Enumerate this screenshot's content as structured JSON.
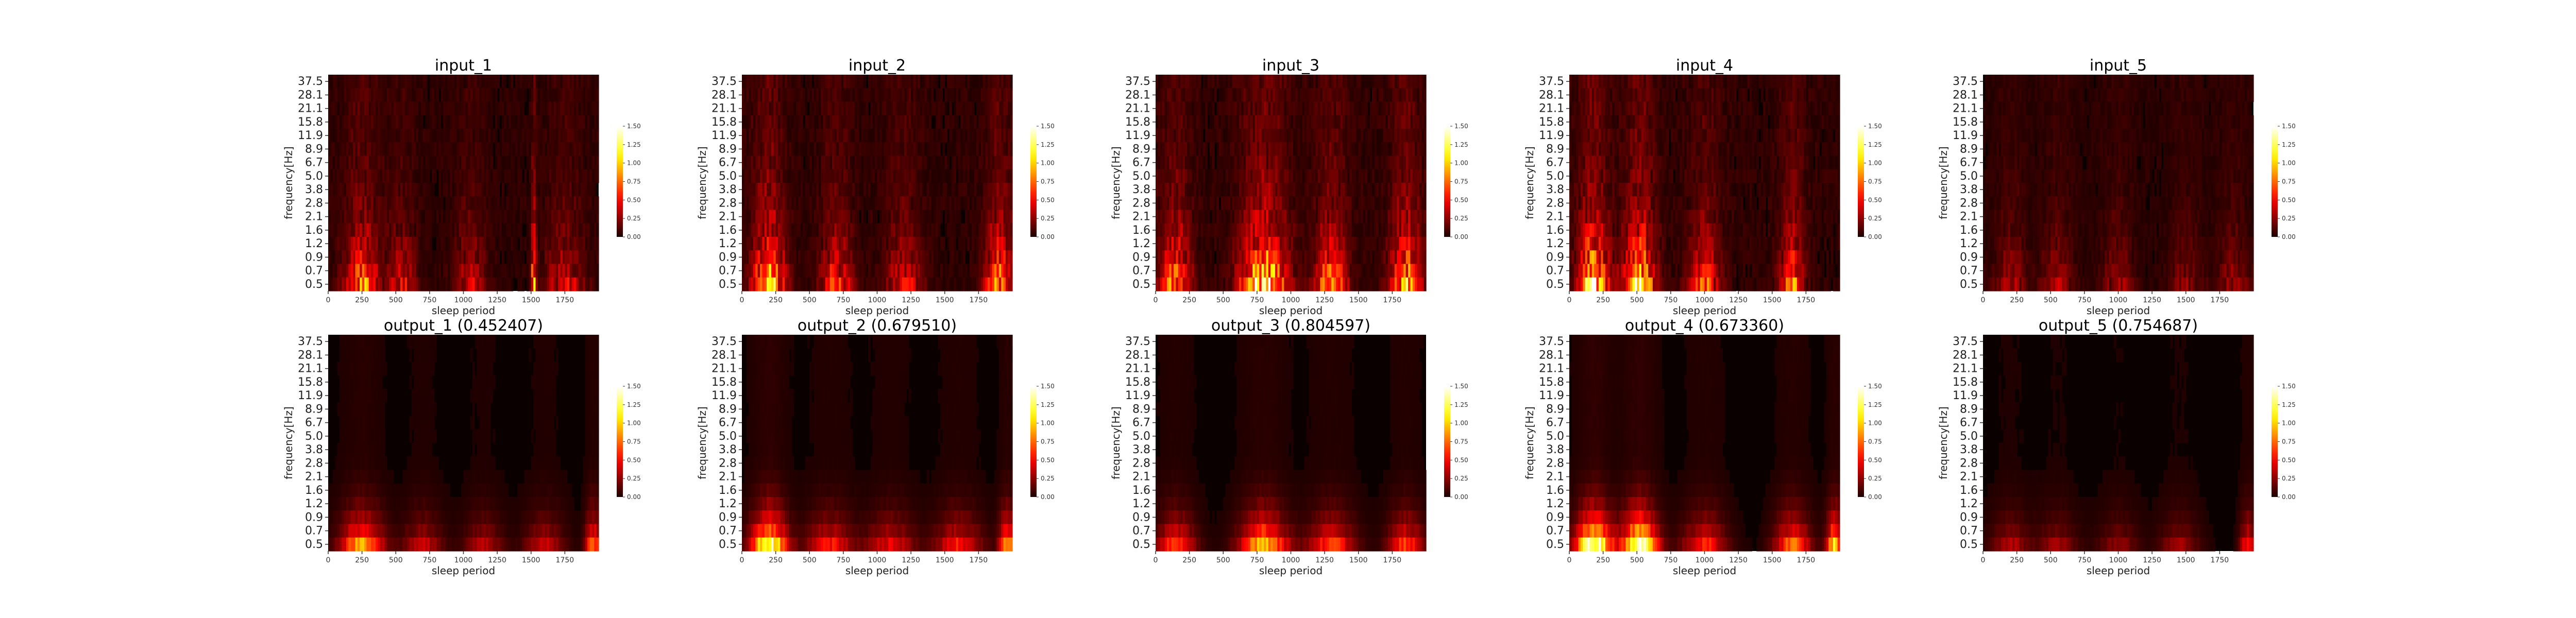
{
  "chart_data": {
    "type": "heatmap",
    "layout": {
      "rows": 2,
      "cols": 5
    },
    "colormap": "hot",
    "colors": {
      "low": "#000000",
      "mid1": "#8b0000",
      "mid2": "#ff2000",
      "mid3": "#ffa000",
      "high": "#ffffff"
    },
    "xlabel": "sleep period",
    "ylabel": "frequency[Hz]",
    "xlim": [
      0,
      2000
    ],
    "xticks": [
      0,
      250,
      500,
      750,
      1000,
      1250,
      1500,
      1750
    ],
    "xtick_labels": [
      "0",
      "250",
      "500",
      "750",
      "1000",
      "1250",
      "1500",
      "1750"
    ],
    "yticks": [
      "37.5",
      "28.1",
      "21.1",
      "15.8",
      "11.9",
      "8.9",
      "6.7",
      "5.0",
      "3.8",
      "2.8",
      "2.1",
      "1.6",
      "1.2",
      "0.9",
      "0.7",
      "0.5"
    ],
    "colorbar": {
      "range": [
        0,
        1.5
      ],
      "ticks": [
        0,
        0.25,
        0.5,
        0.75,
        1.0,
        1.25,
        1.5
      ],
      "tick_labels": [
        "0.00",
        "0.25",
        "0.50",
        "0.75",
        "1.00",
        "1.25",
        "1.50"
      ]
    },
    "panels": [
      {
        "title": "input_1",
        "row": 0,
        "col": 0,
        "kind": "input",
        "seed": 11,
        "intensity": 0.8,
        "hotspots": [
          {
            "x": 250,
            "sigma": 90,
            "amp": 0.7
          },
          {
            "x": 550,
            "sigma": 70,
            "amp": 0.4
          },
          {
            "x": 1050,
            "sigma": 80,
            "amp": 0.35
          },
          {
            "x": 1520,
            "sigma": 12,
            "amp": 1.0
          },
          {
            "x": 1750,
            "sigma": 100,
            "amp": 0.4
          }
        ]
      },
      {
        "title": "input_2",
        "row": 0,
        "col": 1,
        "kind": "input",
        "seed": 23,
        "intensity": 0.9,
        "hotspots": [
          {
            "x": 200,
            "sigma": 80,
            "amp": 0.9
          },
          {
            "x": 700,
            "sigma": 80,
            "amp": 0.5
          },
          {
            "x": 1200,
            "sigma": 90,
            "amp": 0.4
          },
          {
            "x": 1900,
            "sigma": 70,
            "amp": 0.7
          }
        ]
      },
      {
        "title": "input_3",
        "row": 0,
        "col": 2,
        "kind": "input",
        "seed": 37,
        "intensity": 1.0,
        "hotspots": [
          {
            "x": 150,
            "sigma": 80,
            "amp": 0.6
          },
          {
            "x": 800,
            "sigma": 120,
            "amp": 0.9
          },
          {
            "x": 1300,
            "sigma": 80,
            "amp": 0.6
          },
          {
            "x": 1850,
            "sigma": 80,
            "amp": 0.7
          }
        ]
      },
      {
        "title": "input_4",
        "row": 0,
        "col": 3,
        "kind": "input",
        "seed": 41,
        "intensity": 0.95,
        "hotspots": [
          {
            "x": 180,
            "sigma": 80,
            "amp": 0.9
          },
          {
            "x": 520,
            "sigma": 80,
            "amp": 0.9
          },
          {
            "x": 1000,
            "sigma": 80,
            "amp": 0.5
          },
          {
            "x": 1650,
            "sigma": 60,
            "amp": 0.6
          }
        ]
      },
      {
        "title": "input_5",
        "row": 0,
        "col": 4,
        "kind": "input",
        "seed": 53,
        "intensity": 0.6,
        "hotspots": [
          {
            "x": 200,
            "sigma": 80,
            "amp": 0.4
          },
          {
            "x": 550,
            "sigma": 80,
            "amp": 0.4
          },
          {
            "x": 1000,
            "sigma": 80,
            "amp": 0.35
          },
          {
            "x": 1500,
            "sigma": 80,
            "amp": 0.3
          },
          {
            "x": 1850,
            "sigma": 80,
            "amp": 0.35
          }
        ]
      },
      {
        "title": "output_1 (0.452407)",
        "row": 1,
        "col": 0,
        "kind": "output",
        "seed": 61,
        "intensity": 0.75,
        "hotspots": [
          {
            "x": 250,
            "sigma": 110,
            "amp": 0.8
          },
          {
            "x": 700,
            "sigma": 100,
            "amp": 0.35
          },
          {
            "x": 1150,
            "sigma": 100,
            "amp": 0.3
          },
          {
            "x": 1600,
            "sigma": 100,
            "amp": 0.35
          },
          {
            "x": 1960,
            "sigma": 40,
            "amp": 0.7
          }
        ]
      },
      {
        "title": "output_2 (0.679510)",
        "row": 1,
        "col": 1,
        "kind": "output",
        "seed": 71,
        "intensity": 0.9,
        "hotspots": [
          {
            "x": 200,
            "sigma": 90,
            "amp": 1.0
          },
          {
            "x": 650,
            "sigma": 120,
            "amp": 0.4
          },
          {
            "x": 1100,
            "sigma": 120,
            "amp": 0.35
          },
          {
            "x": 1600,
            "sigma": 120,
            "amp": 0.4
          },
          {
            "x": 1960,
            "sigma": 40,
            "amp": 0.7
          }
        ]
      },
      {
        "title": "output_3 (0.804597)",
        "row": 1,
        "col": 2,
        "kind": "output",
        "seed": 83,
        "intensity": 0.85,
        "hotspots": [
          {
            "x": 150,
            "sigma": 100,
            "amp": 0.5
          },
          {
            "x": 800,
            "sigma": 120,
            "amp": 0.8
          },
          {
            "x": 1300,
            "sigma": 120,
            "amp": 0.5
          },
          {
            "x": 1850,
            "sigma": 90,
            "amp": 0.5
          }
        ]
      },
      {
        "title": "output_4 (0.673360)",
        "row": 1,
        "col": 3,
        "kind": "output",
        "seed": 97,
        "intensity": 1.0,
        "hotspots": [
          {
            "x": 180,
            "sigma": 90,
            "amp": 1.0
          },
          {
            "x": 520,
            "sigma": 90,
            "amp": 1.0
          },
          {
            "x": 1000,
            "sigma": 110,
            "amp": 0.4
          },
          {
            "x": 1650,
            "sigma": 90,
            "amp": 0.5
          },
          {
            "x": 1960,
            "sigma": 40,
            "amp": 0.7
          }
        ]
      },
      {
        "title": "output_5 (0.754687)",
        "row": 1,
        "col": 4,
        "kind": "output",
        "seed": 101,
        "intensity": 0.55,
        "hotspots": [
          {
            "x": 200,
            "sigma": 100,
            "amp": 0.4
          },
          {
            "x": 550,
            "sigma": 100,
            "amp": 0.35
          },
          {
            "x": 1000,
            "sigma": 100,
            "amp": 0.3
          },
          {
            "x": 1450,
            "sigma": 100,
            "amp": 0.35
          },
          {
            "x": 1960,
            "sigma": 40,
            "amp": 0.7
          }
        ]
      }
    ]
  }
}
